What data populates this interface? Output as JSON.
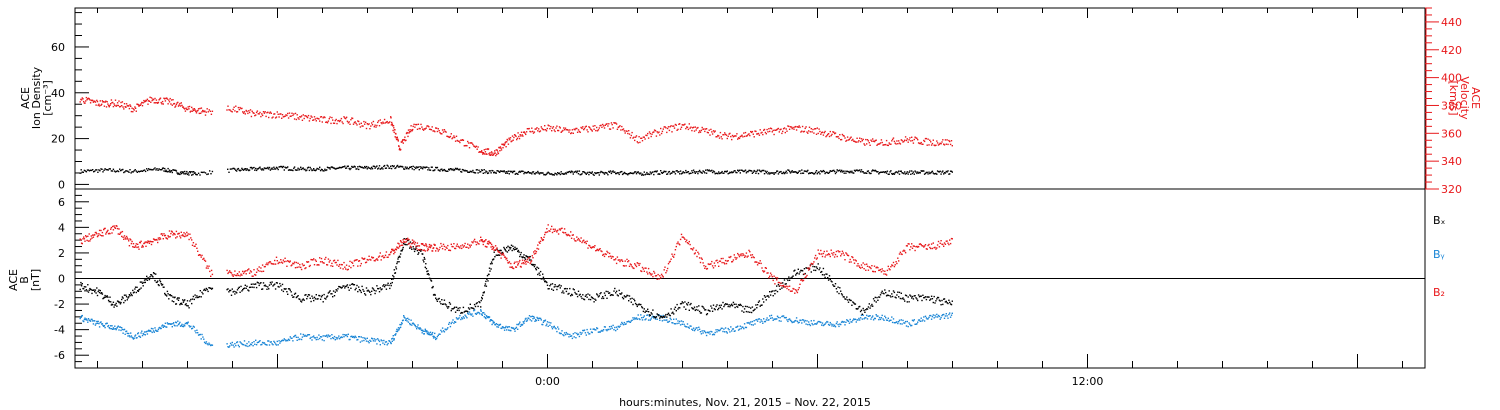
{
  "colors": {
    "black": "#000000",
    "red": "#e8191c",
    "blue": "#1a86d6"
  },
  "panel_top": {
    "left_axis_label": [
      "ACE",
      "Ion Density",
      "[cm⁻³]"
    ],
    "right_axis_label": [
      "ACE",
      "Velocity",
      "[km/s]"
    ]
  },
  "panel_bottom": {
    "left_axis_label": [
      "ACE",
      "B",
      "[nT]"
    ],
    "legend": [
      "Bₓ",
      "Bᵧ",
      "B₂"
    ],
    "legend_text": [
      "Bx",
      "By",
      "Bz"
    ]
  },
  "x_axis_label": "hours:minutes, Nov. 21, 2015 – Nov. 22, 2015",
  "chart_data": [
    {
      "type": "scatter",
      "panel": "top",
      "xlabel": "hours:minutes, Nov. 21, 2015 – Nov. 22, 2015",
      "x_unit": "hours relative to 0:00 Nov. 22, 2015",
      "xlim": [
        -10.5,
        19.5
      ],
      "x_tick_labels": [
        "0:00",
        "12:00"
      ],
      "y_left": {
        "label": "ACE Ion Density [cm⁻³]",
        "lim": [
          -2,
          77
        ],
        "ticks": [
          0,
          20,
          40,
          60
        ]
      },
      "y_right": {
        "label": "ACE Velocity [km/s]",
        "lim": [
          320,
          450
        ],
        "ticks": [
          320,
          340,
          360,
          380,
          400,
          420,
          440
        ]
      },
      "grid": false,
      "series": [
        {
          "axis": "left",
          "color": "#000000",
          "x": [
            -10.4,
            -9.8,
            -9.2,
            -8.6,
            -8.2,
            -7.8,
            -7.0,
            -6.5,
            -6.0,
            -5.5,
            -5.0,
            -4.5,
            -4.0,
            -3.5,
            -3.0,
            -2.5,
            -2.0,
            -1.5,
            -1.0,
            -0.5,
            0.0,
            0.5,
            1.0,
            1.5,
            2.0,
            2.5,
            3.0,
            3.5,
            4.0,
            4.5,
            5.0,
            5.5,
            6.0,
            6.5,
            7.0,
            7.5,
            8.0,
            8.5,
            9.0
          ],
          "y": [
            6,
            6.5,
            6,
            7,
            5.5,
            5,
            6.5,
            7,
            7.5,
            7,
            7,
            7.5,
            7.5,
            8,
            7.5,
            7,
            6.5,
            6,
            5.5,
            5.5,
            5,
            5.5,
            5,
            5.5,
            5,
            5.5,
            5.5,
            6,
            5.5,
            6,
            5.5,
            6,
            5.5,
            6,
            6,
            5.5,
            5.5,
            5.5,
            5.5
          ]
        },
        {
          "axis": "right",
          "color": "#e8191c",
          "x": [
            -10.4,
            -10.0,
            -9.6,
            -9.2,
            -8.8,
            -8.4,
            -8.0,
            -7.6,
            -7.0,
            -6.5,
            -6.0,
            -5.5,
            -5.0,
            -4.5,
            -4.0,
            -3.5,
            -3.3,
            -3.0,
            -2.5,
            -2.0,
            -1.5,
            -1.2,
            -0.9,
            -0.5,
            0.0,
            0.5,
            1.0,
            1.5,
            2.0,
            2.5,
            3.0,
            3.5,
            4.0,
            4.5,
            5.0,
            5.5,
            6.0,
            6.5,
            7.0,
            7.5,
            8.0,
            8.5,
            9.0
          ],
          "y": [
            385,
            382,
            382,
            378,
            385,
            383,
            378,
            376,
            378,
            374,
            374,
            372,
            370,
            370,
            366,
            370,
            350,
            366,
            364,
            356,
            348,
            346,
            354,
            362,
            364,
            362,
            364,
            366,
            356,
            362,
            366,
            362,
            358,
            360,
            362,
            364,
            362,
            358,
            354,
            354,
            356,
            354,
            354
          ]
        }
      ]
    },
    {
      "type": "scatter",
      "panel": "bottom",
      "xlabel": "hours:minutes, Nov. 21, 2015 – Nov. 22, 2015",
      "x_unit": "hours relative to 0:00 Nov. 22, 2015",
      "xlim": [
        -10.5,
        19.5
      ],
      "x_tick_labels": [
        "0:00",
        "12:00"
      ],
      "y_left": {
        "label": "ACE B [nT]",
        "lim": [
          -7,
          7
        ],
        "ticks": [
          -6,
          -4,
          -2,
          0,
          2,
          4,
          6
        ]
      },
      "grid": false,
      "series": [
        {
          "name": "Bx",
          "color": "#000000",
          "x": [
            -10.4,
            -10.0,
            -9.6,
            -9.2,
            -8.8,
            -8.4,
            -8.0,
            -7.5,
            -7.0,
            -6.5,
            -6.0,
            -5.5,
            -5.0,
            -4.5,
            -4.0,
            -3.5,
            -3.2,
            -2.8,
            -2.5,
            -2.0,
            -1.5,
            -1.2,
            -0.8,
            -0.4,
            0.0,
            0.5,
            1.0,
            1.5,
            2.0,
            2.5,
            3.0,
            3.5,
            4.0,
            4.5,
            5.0,
            5.5,
            6.0,
            6.5,
            7.0,
            7.5,
            8.0,
            8.5,
            9.0
          ],
          "y": [
            -0.5,
            -1,
            -2,
            -1,
            0.5,
            -1.5,
            -2,
            -0.5,
            -1,
            -0.5,
            -0.5,
            -1.5,
            -1.5,
            -0.5,
            -1,
            -0.5,
            3,
            2,
            -1.5,
            -2.5,
            -2,
            2,
            2.5,
            1.5,
            -0.5,
            -1,
            -1.5,
            -1,
            -2,
            -3,
            -2,
            -2.5,
            -2,
            -2.5,
            -1,
            0.5,
            1,
            -1,
            -2.5,
            -1,
            -1.5,
            -1.5,
            -2
          ]
        },
        {
          "name": "By",
          "color": "#1a86d6",
          "x": [
            -10.4,
            -10.0,
            -9.6,
            -9.2,
            -8.8,
            -8.4,
            -8.0,
            -7.5,
            -7.0,
            -6.5,
            -6.0,
            -5.5,
            -5.0,
            -4.5,
            -4.0,
            -3.5,
            -3.2,
            -2.8,
            -2.5,
            -2.0,
            -1.5,
            -1.2,
            -0.8,
            -0.4,
            0.0,
            0.5,
            1.0,
            1.5,
            2.0,
            2.5,
            3.0,
            3.5,
            4.0,
            4.5,
            5.0,
            5.5,
            6.0,
            6.5,
            7.0,
            7.5,
            8.0,
            8.5,
            9.0
          ],
          "y": [
            -3,
            -3.5,
            -3.8,
            -4.5,
            -4,
            -3.5,
            -3.5,
            -5.2,
            -5.1,
            -5,
            -5,
            -4.5,
            -4.6,
            -4.5,
            -4.8,
            -5,
            -3,
            -4,
            -4.5,
            -3,
            -2.5,
            -3.5,
            -4,
            -3,
            -3.5,
            -4.5,
            -4,
            -3.8,
            -3,
            -3,
            -3.5,
            -4.2,
            -4,
            -3.5,
            -3,
            -3.2,
            -3.5,
            -3.5,
            -3,
            -3,
            -3.5,
            -3,
            -2.8
          ]
        },
        {
          "name": "Bz",
          "color": "#e8191c",
          "x": [
            -10.4,
            -10.0,
            -9.6,
            -9.2,
            -8.8,
            -8.4,
            -8.0,
            -7.5,
            -7.0,
            -6.5,
            -6.0,
            -5.5,
            -5.0,
            -4.5,
            -4.0,
            -3.5,
            -3.2,
            -2.8,
            -2.5,
            -2.0,
            -1.5,
            -1.2,
            -0.8,
            -0.4,
            0.0,
            0.5,
            1.0,
            1.5,
            2.0,
            2.5,
            3.0,
            3.5,
            4.0,
            4.5,
            5.0,
            5.5,
            6.0,
            6.5,
            7.0,
            7.5,
            8.0,
            8.5,
            9.0
          ],
          "y": [
            3,
            3.5,
            4,
            2.5,
            3,
            3.5,
            3.5,
            0.5,
            0.5,
            0.5,
            1.5,
            1,
            1.5,
            1,
            1.5,
            2,
            3,
            2.5,
            2.5,
            2.5,
            3,
            2.5,
            1,
            1.5,
            4,
            3.5,
            2.5,
            1.5,
            1,
            0,
            3.5,
            1,
            1.5,
            2,
            0,
            -1,
            2,
            2,
            1,
            0.5,
            2.5,
            2.5,
            3
          ]
        }
      ]
    }
  ]
}
